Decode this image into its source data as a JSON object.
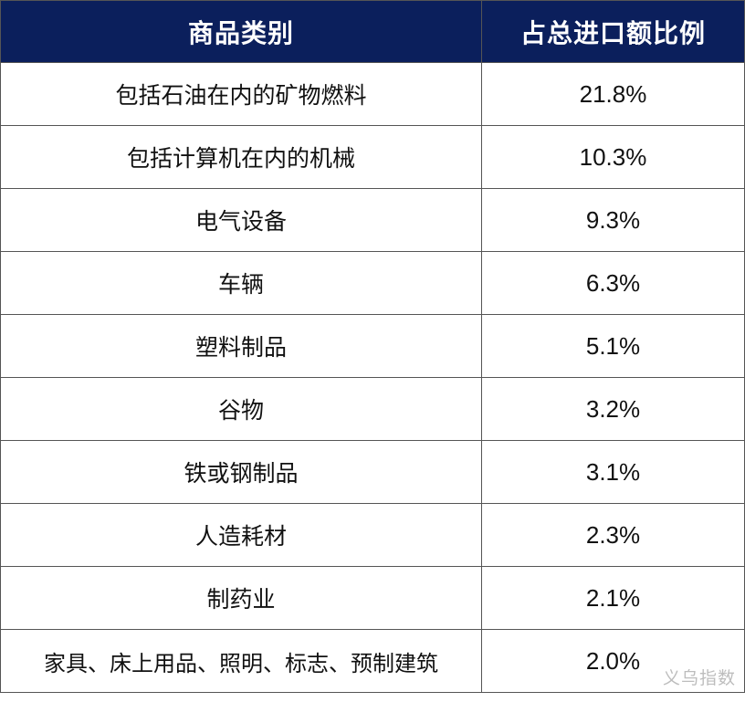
{
  "table": {
    "headers": [
      "商品类别",
      "占总进口额比例"
    ],
    "rows": [
      {
        "category": "包括石油在内的矿物燃料",
        "share": "21.8%"
      },
      {
        "category": "包括计算机在内的机械",
        "share": "10.3%"
      },
      {
        "category": "电气设备",
        "share": "9.3%"
      },
      {
        "category": "车辆",
        "share": "6.3%"
      },
      {
        "category": "塑料制品",
        "share": "5.1%"
      },
      {
        "category": "谷物",
        "share": "3.2%"
      },
      {
        "category": "铁或钢制品",
        "share": "3.1%"
      },
      {
        "category": "人造耗材",
        "share": "2.3%"
      },
      {
        "category": "制药业",
        "share": "2.1%"
      },
      {
        "category": "家具、床上用品、照明、标志、预制建筑",
        "share": "2.0%"
      }
    ]
  },
  "watermark": "义乌指数",
  "colors": {
    "header_background": "#0b1f5c",
    "header_text": "#ffffff",
    "border": "#555555",
    "watermark": "#bdbdbd"
  }
}
